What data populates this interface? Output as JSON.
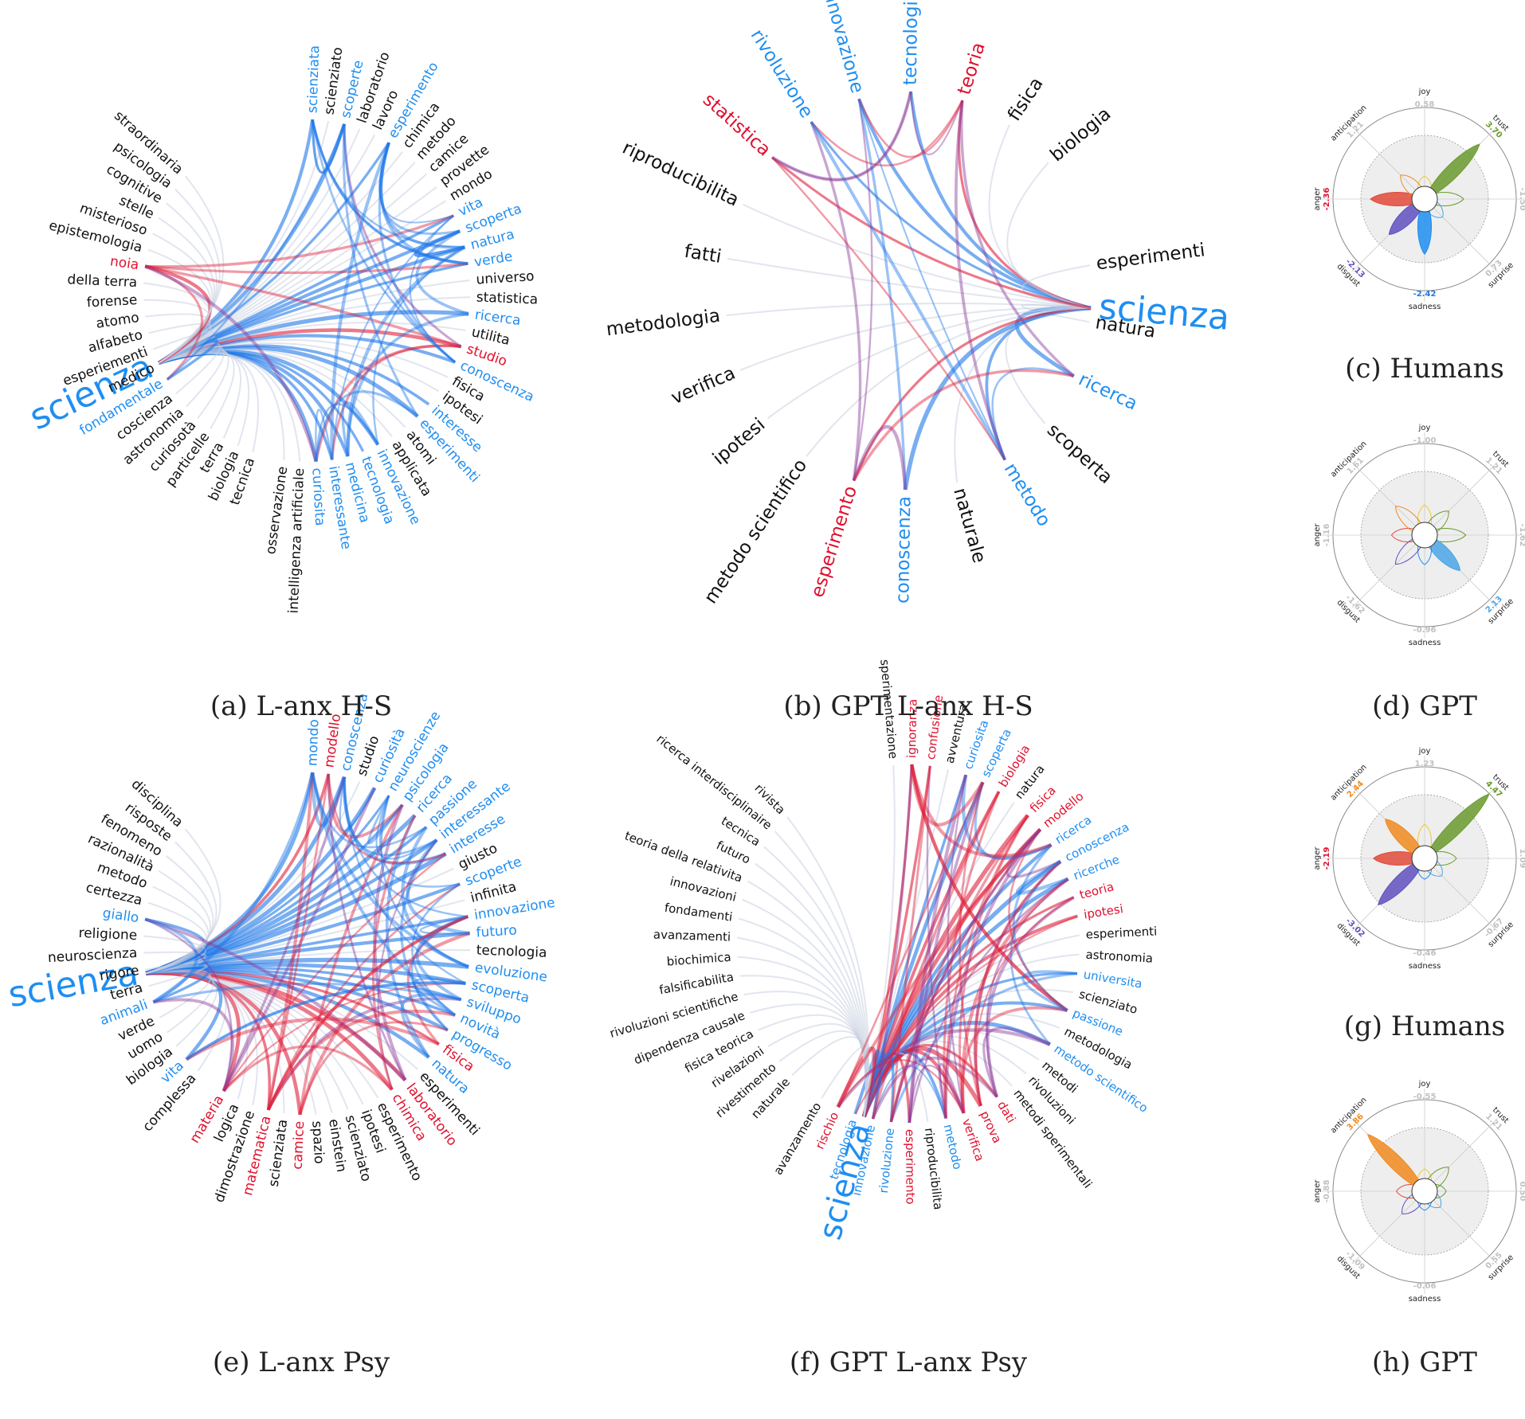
{
  "colors": {
    "black": "#111111",
    "blue": "#1f8ef1",
    "red": "#e0102e",
    "green": "#6a9a2e",
    "orange": "#f08a20",
    "purple": "#6050c0",
    "grey": "#bbbbbb",
    "lineBlue": "#1f78e8",
    "lineRed": "#e0203a",
    "linePurple": "#8a3a9a",
    "lineGrey": "#c8d0e0"
  },
  "chart_data": [
    {
      "id": "a",
      "type": "network",
      "caption": "(a) L-anx H-S",
      "center": "scienza",
      "words": [
        {
          "t": "scienziata",
          "c": "blue"
        },
        {
          "t": "scienziato",
          "c": "black"
        },
        {
          "t": "scoperte",
          "c": "blue"
        },
        {
          "t": "laboratorio",
          "c": "black"
        },
        {
          "t": "lavoro",
          "c": "black"
        },
        {
          "t": "esperimento",
          "c": "blue"
        },
        {
          "t": "chimica",
          "c": "black"
        },
        {
          "t": "metodo",
          "c": "black"
        },
        {
          "t": "camice",
          "c": "black"
        },
        {
          "t": "provette",
          "c": "black"
        },
        {
          "t": "mondo",
          "c": "black"
        },
        {
          "t": "vita",
          "c": "blue"
        },
        {
          "t": "scoperta",
          "c": "blue"
        },
        {
          "t": "natura",
          "c": "blue"
        },
        {
          "t": "verde",
          "c": "blue"
        },
        {
          "t": "universo",
          "c": "black"
        },
        {
          "t": "statistica",
          "c": "black"
        },
        {
          "t": "ricerca",
          "c": "blue"
        },
        {
          "t": "utilita",
          "c": "black"
        },
        {
          "t": "studio",
          "c": "red"
        },
        {
          "t": "conoscenza",
          "c": "blue"
        },
        {
          "t": "fisica",
          "c": "black"
        },
        {
          "t": "ipotesi",
          "c": "black"
        },
        {
          "t": "interesse",
          "c": "blue"
        },
        {
          "t": "esperimenti",
          "c": "blue"
        },
        {
          "t": "atomi",
          "c": "black"
        },
        {
          "t": "applicata",
          "c": "black"
        },
        {
          "t": "innovazione",
          "c": "blue"
        },
        {
          "t": "tecnologia",
          "c": "blue"
        },
        {
          "t": "medicina",
          "c": "blue"
        },
        {
          "t": "interessante",
          "c": "blue"
        },
        {
          "t": "curiosita",
          "c": "blue"
        },
        {
          "t": "intelligenza artificiale",
          "c": "black"
        },
        {
          "t": "osservazione",
          "c": "black"
        },
        {
          "t": "scienza",
          "c": "blue"
        },
        {
          "t": "tecnica",
          "c": "black"
        },
        {
          "t": "biologia",
          "c": "black"
        },
        {
          "t": "terra",
          "c": "black"
        },
        {
          "t": "particelle",
          "c": "black"
        },
        {
          "t": "curiosotà",
          "c": "black"
        },
        {
          "t": "astronomia",
          "c": "black"
        },
        {
          "t": "coscienza",
          "c": "black"
        },
        {
          "t": "fondamentale",
          "c": "blue"
        },
        {
          "t": "medico",
          "c": "black"
        },
        {
          "t": "esperiementi",
          "c": "black"
        },
        {
          "t": "alfabeto",
          "c": "black"
        },
        {
          "t": "atomo",
          "c": "black"
        },
        {
          "t": "forense",
          "c": "black"
        },
        {
          "t": "della terra",
          "c": "black"
        },
        {
          "t": "noia",
          "c": "red"
        },
        {
          "t": "epistemologia",
          "c": "black"
        },
        {
          "t": "misterioso",
          "c": "black"
        },
        {
          "t": "stelle",
          "c": "black"
        },
        {
          "t": "cognitive",
          "c": "black"
        },
        {
          "t": "psicologia",
          "c": "black"
        },
        {
          "t": "straordinaria",
          "c": "black"
        }
      ]
    },
    {
      "id": "b",
      "type": "network",
      "caption": "(b) GPT L-anx H-S",
      "center": "scienza",
      "words": [
        {
          "t": "rivoluzione",
          "c": "blue"
        },
        {
          "t": "innovazione",
          "c": "blue"
        },
        {
          "t": "tecnologia",
          "c": "blue"
        },
        {
          "t": "teoria",
          "c": "red"
        },
        {
          "t": "fisica",
          "c": "black"
        },
        {
          "t": "biologia",
          "c": "black"
        },
        {
          "t": "scienza",
          "c": "blue"
        },
        {
          "t": "esperimenti",
          "c": "black"
        },
        {
          "t": "natura",
          "c": "black"
        },
        {
          "t": "ricerca",
          "c": "blue"
        },
        {
          "t": "scoperta",
          "c": "black"
        },
        {
          "t": "metodo",
          "c": "blue"
        },
        {
          "t": "naturale",
          "c": "black"
        },
        {
          "t": "conoscenza",
          "c": "blue"
        },
        {
          "t": "esperimento",
          "c": "red"
        },
        {
          "t": "metodo scientifico",
          "c": "black"
        },
        {
          "t": "ipotesi",
          "c": "black"
        },
        {
          "t": "verifica",
          "c": "black"
        },
        {
          "t": "metodologia",
          "c": "black"
        },
        {
          "t": "fatti",
          "c": "black"
        },
        {
          "t": "riproducibilita",
          "c": "black"
        },
        {
          "t": "statistica",
          "c": "red"
        }
      ]
    },
    {
      "id": "e",
      "type": "network",
      "caption": "(e) L-anx Psy",
      "center": "scienza",
      "words": [
        {
          "t": "mondo",
          "c": "blue"
        },
        {
          "t": "modello",
          "c": "red"
        },
        {
          "t": "conoscenza",
          "c": "blue"
        },
        {
          "t": "studio",
          "c": "black"
        },
        {
          "t": "curiosità",
          "c": "blue"
        },
        {
          "t": "neuroscienze",
          "c": "blue"
        },
        {
          "t": "psicologia",
          "c": "blue"
        },
        {
          "t": "ricerca",
          "c": "blue"
        },
        {
          "t": "passione",
          "c": "blue"
        },
        {
          "t": "interessante",
          "c": "blue"
        },
        {
          "t": "interesse",
          "c": "blue"
        },
        {
          "t": "giusto",
          "c": "black"
        },
        {
          "t": "scoperte",
          "c": "blue"
        },
        {
          "t": "infinita",
          "c": "black"
        },
        {
          "t": "innovazione",
          "c": "blue"
        },
        {
          "t": "futuro",
          "c": "blue"
        },
        {
          "t": "tecnologia",
          "c": "black"
        },
        {
          "t": "evoluzione",
          "c": "blue"
        },
        {
          "t": "scoperta",
          "c": "blue"
        },
        {
          "t": "sviluppo",
          "c": "blue"
        },
        {
          "t": "novità",
          "c": "blue"
        },
        {
          "t": "progresso",
          "c": "blue"
        },
        {
          "t": "fisica",
          "c": "red"
        },
        {
          "t": "natura",
          "c": "blue"
        },
        {
          "t": "esperimenti",
          "c": "black"
        },
        {
          "t": "laboratorio",
          "c": "red"
        },
        {
          "t": "chimica",
          "c": "red"
        },
        {
          "t": "esperimento",
          "c": "black"
        },
        {
          "t": "ipotesi",
          "c": "black"
        },
        {
          "t": "scienziato",
          "c": "black"
        },
        {
          "t": "einstein",
          "c": "black"
        },
        {
          "t": "spazio",
          "c": "black"
        },
        {
          "t": "camice",
          "c": "red"
        },
        {
          "t": "scienziata",
          "c": "black"
        },
        {
          "t": "matematica",
          "c": "red"
        },
        {
          "t": "dimostrazione",
          "c": "black"
        },
        {
          "t": "logica",
          "c": "black"
        },
        {
          "t": "materia",
          "c": "red"
        },
        {
          "t": "scienza",
          "c": "blue"
        },
        {
          "t": "complessa",
          "c": "black"
        },
        {
          "t": "vita",
          "c": "blue"
        },
        {
          "t": "biologia",
          "c": "black"
        },
        {
          "t": "uomo",
          "c": "black"
        },
        {
          "t": "verde",
          "c": "black"
        },
        {
          "t": "animali",
          "c": "blue"
        },
        {
          "t": "terra",
          "c": "black"
        },
        {
          "t": "rigore",
          "c": "black"
        },
        {
          "t": "neuroscienza",
          "c": "black"
        },
        {
          "t": "religione",
          "c": "black"
        },
        {
          "t": "giallo",
          "c": "blue"
        },
        {
          "t": "certezza",
          "c": "black"
        },
        {
          "t": "metodo",
          "c": "black"
        },
        {
          "t": "razionalità",
          "c": "black"
        },
        {
          "t": "fenomeno",
          "c": "black"
        },
        {
          "t": "risposte",
          "c": "black"
        },
        {
          "t": "disciplina",
          "c": "black"
        }
      ]
    },
    {
      "id": "f",
      "type": "network",
      "caption": "(f) GPT L-anx Psy",
      "center": "scienza",
      "words": [
        {
          "t": "sperimentazione",
          "c": "black"
        },
        {
          "t": "ignoranza",
          "c": "red"
        },
        {
          "t": "confusione",
          "c": "red"
        },
        {
          "t": "avventura",
          "c": "black"
        },
        {
          "t": "curiosita",
          "c": "blue"
        },
        {
          "t": "scoperta",
          "c": "blue"
        },
        {
          "t": "biologia",
          "c": "red"
        },
        {
          "t": "natura",
          "c": "black"
        },
        {
          "t": "fisica",
          "c": "red"
        },
        {
          "t": "modello",
          "c": "red"
        },
        {
          "t": "ricerca",
          "c": "blue"
        },
        {
          "t": "conoscenza",
          "c": "blue"
        },
        {
          "t": "ricerche",
          "c": "blue"
        },
        {
          "t": "teoria",
          "c": "red"
        },
        {
          "t": "ipotesi",
          "c": "red"
        },
        {
          "t": "esperimenti",
          "c": "black"
        },
        {
          "t": "astronomia",
          "c": "black"
        },
        {
          "t": "universita",
          "c": "blue"
        },
        {
          "t": "scienziato",
          "c": "black"
        },
        {
          "t": "passione",
          "c": "blue"
        },
        {
          "t": "metodologia",
          "c": "black"
        },
        {
          "t": "metodo scientifico",
          "c": "blue"
        },
        {
          "t": "metodi",
          "c": "black"
        },
        {
          "t": "rivoluzioni",
          "c": "black"
        },
        {
          "t": "metodi sperimentali",
          "c": "black"
        },
        {
          "t": "dati",
          "c": "red"
        },
        {
          "t": "prova",
          "c": "red"
        },
        {
          "t": "verifica",
          "c": "red"
        },
        {
          "t": "metodo",
          "c": "blue"
        },
        {
          "t": "riproducibilita",
          "c": "black"
        },
        {
          "t": "esperimento",
          "c": "red"
        },
        {
          "t": "rivoluzione",
          "c": "blue"
        },
        {
          "t": "innovazione",
          "c": "blue"
        },
        {
          "t": "tecnologia",
          "c": "blue"
        },
        {
          "t": "rischio",
          "c": "red"
        },
        {
          "t": "avanzamento",
          "c": "black"
        },
        {
          "t": "scienza",
          "c": "blue"
        },
        {
          "t": "naturale",
          "c": "black"
        },
        {
          "t": "rivestimento",
          "c": "black"
        },
        {
          "t": "rivelazioni",
          "c": "black"
        },
        {
          "t": "fisica teorica",
          "c": "black"
        },
        {
          "t": "dipendenza causale",
          "c": "black"
        },
        {
          "t": "rivoluzioni scientifiche",
          "c": "black"
        },
        {
          "t": "falsificabilita",
          "c": "black"
        },
        {
          "t": "biochimica",
          "c": "black"
        },
        {
          "t": "avanzamenti",
          "c": "black"
        },
        {
          "t": "fondamenti",
          "c": "black"
        },
        {
          "t": "innovazioni",
          "c": "black"
        },
        {
          "t": "teoria della relativita",
          "c": "black"
        },
        {
          "t": "futuro",
          "c": "black"
        },
        {
          "t": "tecnica",
          "c": "black"
        },
        {
          "t": "ricerca interdisciplinaire",
          "c": "black"
        },
        {
          "t": "rivista",
          "c": "black"
        }
      ]
    },
    {
      "id": "c",
      "type": "radar",
      "caption": "(c) Humans",
      "labels": [
        "joy",
        "trust",
        "fear",
        "surprise",
        "sadness",
        "disgust",
        "anger",
        "anticipation"
      ],
      "values": [
        0.58,
        3.7,
        -1.5,
        0.73,
        -2.42,
        -2.13,
        -2.36,
        1.21
      ]
    },
    {
      "id": "d",
      "type": "radar",
      "caption": "(d) GPT",
      "labels": [
        "joy",
        "trust",
        "fear",
        "surprise",
        "sadness",
        "disgust",
        "anger",
        "anticipation"
      ],
      "values": [
        -1.0,
        1.21,
        -1.62,
        2.13,
        -0.96,
        -1.62,
        -1.16,
        1.61
      ]
    },
    {
      "id": "g",
      "type": "radar",
      "caption": "(g) Humans",
      "labels": [
        "joy",
        "trust",
        "fear",
        "surprise",
        "sadness",
        "disgust",
        "anger",
        "anticipation"
      ],
      "values": [
        1.23,
        4.47,
        1.09,
        -0.67,
        -0.46,
        -3.02,
        -2.19,
        2.44
      ]
    },
    {
      "id": "h",
      "type": "radar",
      "caption": "(h) GPT",
      "labels": [
        "joy",
        "trust",
        "fear",
        "surprise",
        "sadness",
        "disgust",
        "anger",
        "anticipation"
      ],
      "values": [
        -0.55,
        1.21,
        0.5,
        0.55,
        -0.06,
        -1.09,
        -0.88,
        3.86
      ]
    }
  ]
}
